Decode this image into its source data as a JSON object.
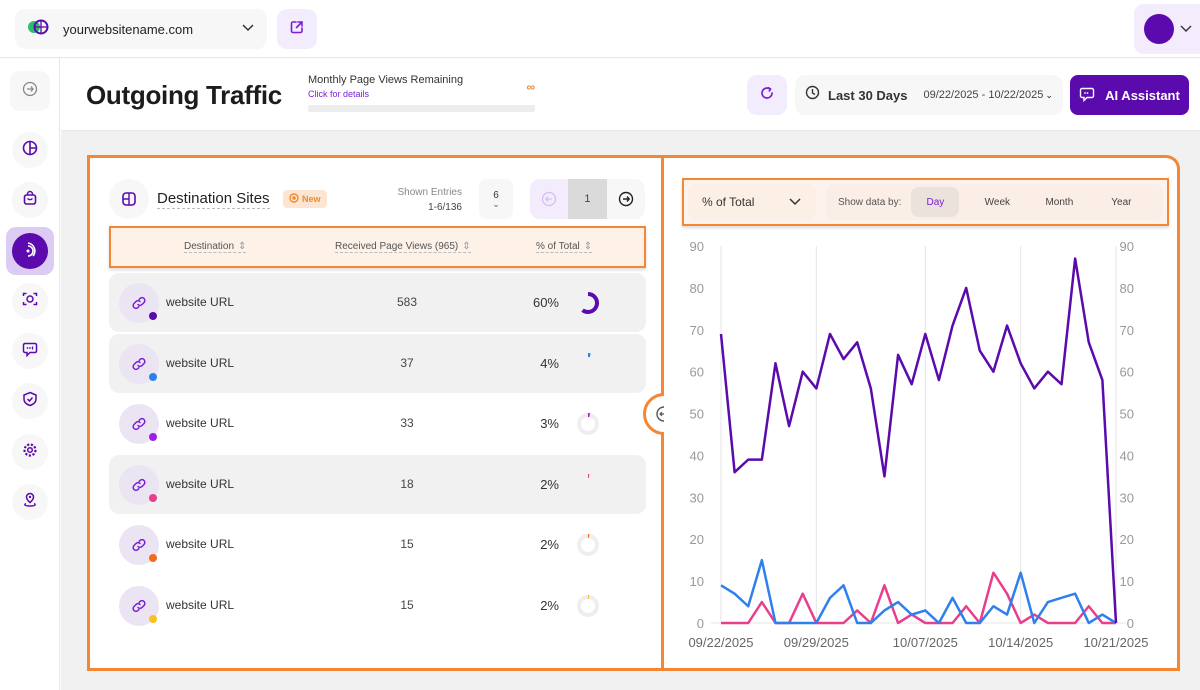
{
  "topbar": {
    "site_name": "yourwebsitename.com"
  },
  "sidebar": {
    "items": [
      {
        "icon": "collapse-icon"
      },
      {
        "icon": "pie-chart-icon"
      },
      {
        "icon": "shopping-bag-icon"
      },
      {
        "icon": "outgoing-traffic-icon",
        "active": true
      },
      {
        "icon": "scan-icon"
      },
      {
        "icon": "chat-icon"
      },
      {
        "icon": "shield-check-icon"
      },
      {
        "icon": "gear-icon"
      },
      {
        "icon": "map-pin-icon"
      }
    ]
  },
  "header": {
    "title": "Outgoing Traffic",
    "quota_label": "Monthly Page Views Remaining",
    "quota_link": "Click for details",
    "quota_value": "∞",
    "period": "Last 30 Days",
    "date_range": "09/22/2025 - 10/22/2025",
    "ai_button": "AI Assistant"
  },
  "table": {
    "title": "Destination Sites",
    "badge": "New",
    "shown_label": "Shown Entries",
    "shown_value": "1-6/136",
    "per_page": "6",
    "page": "1",
    "columns": [
      "Destination",
      "Received Page Views (965)",
      "% of Total"
    ],
    "rows": [
      {
        "url": "website URL",
        "views": "583",
        "pct": "60%",
        "pct_value": 60,
        "color": "#5a0aad",
        "bg": "gray"
      },
      {
        "url": "website URL",
        "views": "37",
        "pct": "4%",
        "pct_value": 4,
        "color": "#2f80ed",
        "bg": "gray"
      },
      {
        "url": "website URL",
        "views": "33",
        "pct": "3%",
        "pct_value": 3,
        "color": "#9b1fe8",
        "bg": "white"
      },
      {
        "url": "website URL",
        "views": "18",
        "pct": "2%",
        "pct_value": 2,
        "color": "#e83e8c",
        "bg": "gray"
      },
      {
        "url": "website URL",
        "views": "15",
        "pct": "2%",
        "pct_value": 2,
        "color": "#f26b1d",
        "bg": "white"
      },
      {
        "url": "website URL",
        "views": "15",
        "pct": "2%",
        "pct_value": 2,
        "color": "#fbbf24",
        "bg": "white"
      }
    ]
  },
  "chart_controls": {
    "metric": "% of Total",
    "show_by_label": "Show data by:",
    "options": [
      "Day",
      "Week",
      "Month",
      "Year"
    ],
    "active": "Day"
  },
  "chart_data": {
    "type": "line",
    "ylim": [
      0,
      90
    ],
    "yticks": [
      0,
      10,
      20,
      30,
      40,
      50,
      60,
      70,
      80,
      90
    ],
    "dual_y_axis": true,
    "xticks": [
      "09/22/2025",
      "09/29/2025",
      "10/07/2025",
      "10/14/2025",
      "10/21/2025"
    ],
    "x_start": "09/22/2025",
    "x_end": "10/21/2025",
    "grid": "vertical",
    "series": [
      {
        "color": "#5a0aad",
        "values": [
          69,
          36,
          39,
          39,
          62,
          47,
          60,
          56,
          69,
          63,
          67,
          56,
          35,
          64,
          57,
          69,
          58,
          71,
          80,
          65,
          60,
          71,
          62,
          56,
          60,
          57,
          87,
          67,
          58,
          0
        ]
      },
      {
        "color": "#2f80ed",
        "values": [
          9,
          7,
          4,
          15,
          0,
          0,
          0,
          0,
          6,
          9,
          0,
          0,
          3,
          5,
          2,
          3,
          0,
          6,
          0,
          0,
          4,
          2,
          12,
          0,
          5,
          6,
          7,
          0,
          2,
          0
        ]
      },
      {
        "color": "#e83e8c",
        "values": [
          0,
          0,
          0,
          5,
          0,
          0,
          7,
          0,
          0,
          0,
          3,
          0,
          9,
          0,
          2,
          0,
          0,
          0,
          4,
          0,
          12,
          7,
          0,
          2,
          0,
          0,
          0,
          4,
          0,
          0
        ]
      }
    ]
  }
}
